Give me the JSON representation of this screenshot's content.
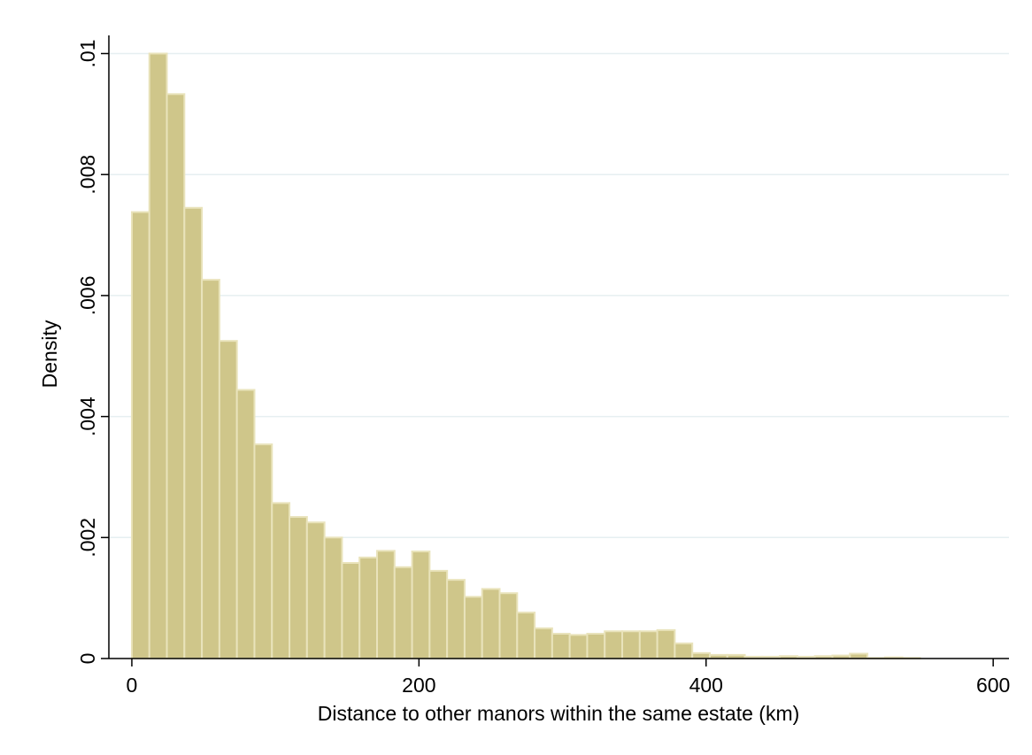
{
  "chart_data": {
    "type": "histogram",
    "x_label": "Distance to other manors within the same estate (km)",
    "y_label": "Density",
    "bins": [
      0,
      12.2,
      24.4,
      36.6,
      48.8,
      61,
      73.2,
      85.4,
      97.6,
      109.8,
      122,
      134.2,
      146.4,
      158.6,
      170.8,
      183,
      195.2,
      207.4,
      219.6,
      231.8,
      244,
      256.2,
      268.4,
      280.6,
      292.8,
      305,
      317.2,
      329.4,
      341.6,
      353.8,
      366,
      378.2,
      390.4,
      402.6,
      414.8,
      427,
      439.2,
      451.4,
      463.6,
      475.8,
      488,
      500.2,
      512.4,
      524.6,
      536.8,
      549
    ],
    "values": [
      0.00738,
      0.01,
      0.00933,
      0.00745,
      0.00626,
      0.00525,
      0.00444,
      0.00354,
      0.00257,
      0.00234,
      0.00225,
      0.002,
      0.00158,
      0.00167,
      0.00178,
      0.00151,
      0.00177,
      0.00145,
      0.0013,
      0.00102,
      0.00115,
      0.00108,
      0.00076,
      0.0005,
      0.00041,
      0.00039,
      0.00041,
      0.00045,
      0.00045,
      0.00045,
      0.00047,
      0.00025,
      9e-05,
      6e-05,
      6e-05,
      3e-05,
      3e-05,
      4e-05,
      3e-05,
      4e-05,
      5e-05,
      8e-05,
      1e-05,
      2e-05,
      1e-05
    ],
    "color": "#cfc68a",
    "xlim": [
      -16,
      611
    ],
    "xticks": [
      0,
      200,
      400,
      600
    ],
    "ylim": [
      0,
      0.0103
    ],
    "yticks": [
      0,
      {
        "value": 0.002,
        "label": ".002"
      },
      {
        "value": 0.004,
        "label": ".004"
      },
      {
        "value": 0.006,
        "label": ".006"
      },
      {
        "value": 0.008,
        "label": ".008"
      },
      {
        "value": 0.01,
        "label": ".01"
      }
    ],
    "grid": true
  }
}
